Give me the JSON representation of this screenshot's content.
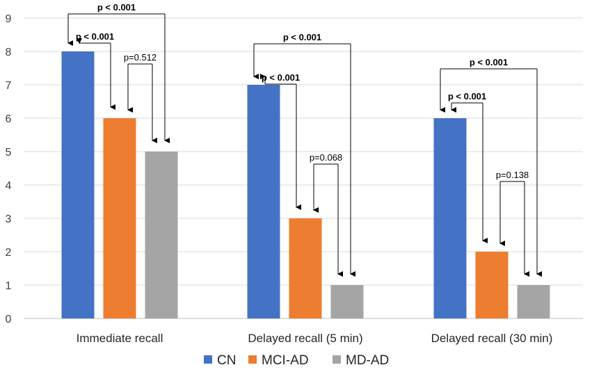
{
  "chart_data": {
    "type": "bar",
    "categories": [
      "Immediate recall",
      "Delayed recall (5 min)",
      "Delayed recall (30 min)"
    ],
    "series": [
      {
        "name": "CN",
        "color": "#4472C4",
        "values": [
          8,
          7,
          6
        ]
      },
      {
        "name": "MCI-AD",
        "color": "#ED7D31",
        "values": [
          6,
          3,
          2
        ]
      },
      {
        "name": "MD-AD",
        "color": "#A5A5A5",
        "values": [
          5,
          1,
          1
        ]
      }
    ],
    "ylim": [
      0,
      9
    ],
    "yticks": [
      "0",
      "1",
      "2",
      "3",
      "4",
      "5",
      "6",
      "7",
      "8",
      "9"
    ],
    "title": "",
    "xlabel": "",
    "ylabel": "",
    "grid": true,
    "legend_position": "bottom",
    "annotations": [
      {
        "group": 0,
        "from": 0,
        "to": 2,
        "label": "p < 0.001",
        "bold": true
      },
      {
        "group": 0,
        "from": 0,
        "to": 1,
        "label": "p < 0.001",
        "bold": true
      },
      {
        "group": 0,
        "from": 1,
        "to": 2,
        "label": "p=0.512",
        "bold": false
      },
      {
        "group": 1,
        "from": 0,
        "to": 2,
        "label": "p < 0.001",
        "bold": true
      },
      {
        "group": 1,
        "from": 0,
        "to": 1,
        "label": "p < 0.001",
        "bold": true
      },
      {
        "group": 1,
        "from": 1,
        "to": 2,
        "label": "p=0.068",
        "bold": false
      },
      {
        "group": 2,
        "from": 0,
        "to": 2,
        "label": "p < 0.001",
        "bold": true
      },
      {
        "group": 2,
        "from": 0,
        "to": 1,
        "label": "p < 0.001",
        "bold": true
      },
      {
        "group": 2,
        "from": 1,
        "to": 2,
        "label": "p=0.138",
        "bold": false
      }
    ]
  }
}
